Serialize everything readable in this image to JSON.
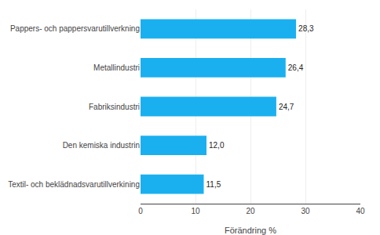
{
  "chart_data": {
    "type": "bar",
    "orientation": "horizontal",
    "categories": [
      "Textil- och beklädnadsvarutillverkining",
      "Den kemiska industrin",
      "Fabriksindustri",
      "Metallindustri",
      "Pappers- och pappersvarutillverkning"
    ],
    "values": [
      11.5,
      12.0,
      24.7,
      26.4,
      28.3
    ],
    "value_labels": [
      "11,5",
      "12,0",
      "24,7",
      "26,4",
      "28,3"
    ],
    "data_labels": true,
    "color": "#1ab0f0",
    "xlabel": "Förändring %",
    "xlim": [
      0,
      40
    ],
    "xticks": [
      0,
      10,
      20,
      30,
      40
    ],
    "grid": true
  }
}
